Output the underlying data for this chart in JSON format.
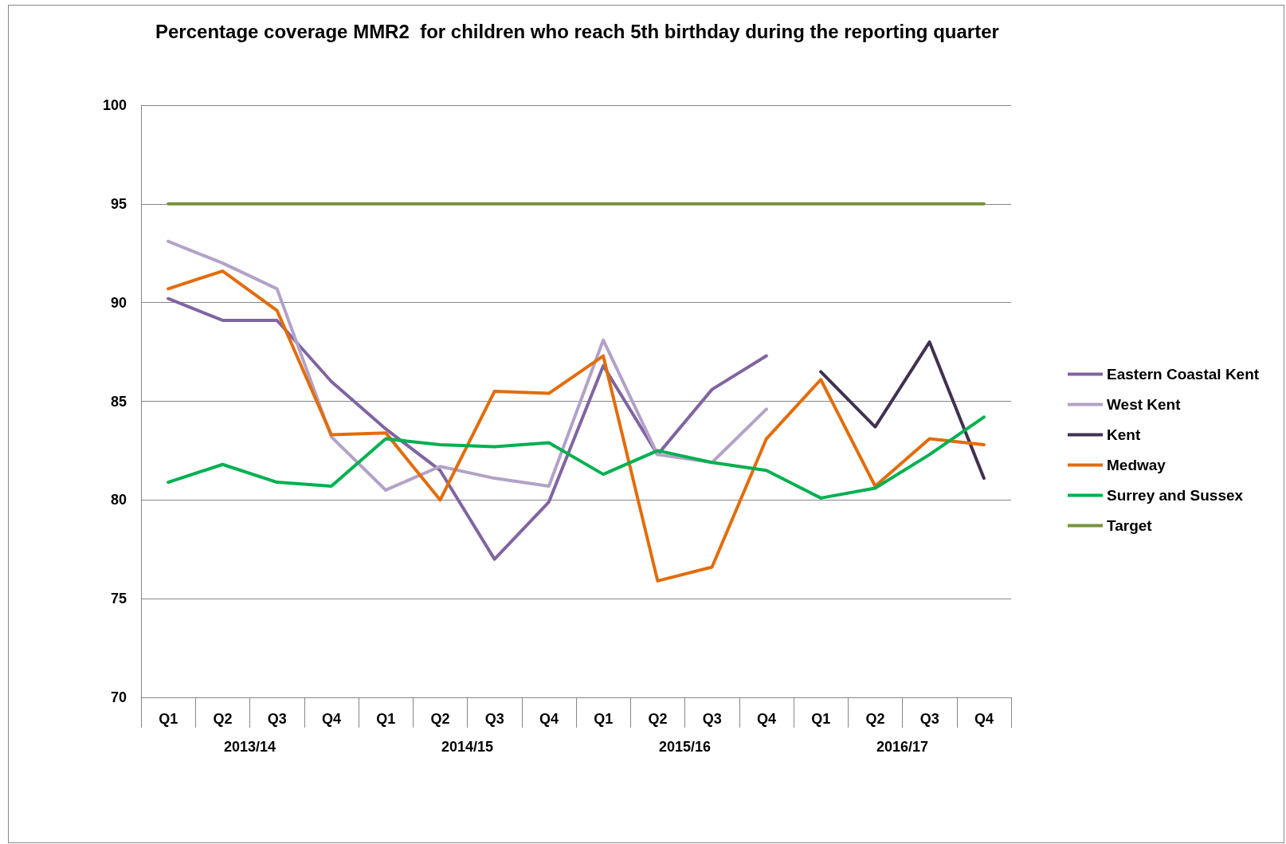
{
  "chart_data": {
    "type": "line",
    "title": "Percentage coverage MMR2  for children who reach 5th birthday during the reporting quarter",
    "categories": [
      "Q1",
      "Q2",
      "Q3",
      "Q4",
      "Q1",
      "Q2",
      "Q3",
      "Q4",
      "Q1",
      "Q2",
      "Q3",
      "Q4",
      "Q1",
      "Q2",
      "Q3",
      "Q4"
    ],
    "annotations": [
      "2013/14",
      "2014/15",
      "2015/16",
      "2016/17"
    ],
    "series": [
      {
        "name": "Eastern Coastal Kent",
        "color": "#8064a2",
        "values": [
          90.2,
          89.1,
          89.1,
          86.0,
          83.6,
          81.5,
          77.0,
          79.9,
          86.8,
          82.3,
          85.6,
          87.3,
          null,
          null,
          null,
          null
        ]
      },
      {
        "name": "West Kent",
        "color": "#b3a2c7",
        "values": [
          93.1,
          92.0,
          90.7,
          83.2,
          80.5,
          81.7,
          81.1,
          80.7,
          88.1,
          82.3,
          81.9,
          84.6,
          null,
          null,
          null,
          null
        ]
      },
      {
        "name": "Kent",
        "color": "#403151",
        "values": [
          null,
          null,
          null,
          null,
          null,
          null,
          null,
          null,
          null,
          null,
          null,
          null,
          86.5,
          83.7,
          88.0,
          81.1
        ]
      },
      {
        "name": "Medway",
        "color": "#e36c09",
        "values": [
          90.7,
          91.6,
          89.6,
          83.3,
          83.4,
          80.0,
          85.5,
          85.4,
          87.3,
          75.9,
          76.6,
          83.1,
          86.1,
          80.7,
          83.1,
          82.8
        ]
      },
      {
        "name": "Surrey and Sussex",
        "color": "#00b050",
        "values": [
          80.9,
          81.8,
          80.9,
          80.7,
          83.1,
          82.8,
          82.7,
          82.9,
          81.3,
          82.5,
          81.9,
          81.5,
          80.1,
          80.6,
          82.3,
          84.2
        ]
      },
      {
        "name": "Target",
        "color": "#77933c",
        "values": [
          95,
          95,
          95,
          95,
          95,
          95,
          95,
          95,
          95,
          95,
          95,
          95,
          95,
          95,
          95,
          95
        ]
      }
    ],
    "ylim": [
      70,
      100
    ],
    "yticks": [
      70,
      75,
      80,
      85,
      90,
      95,
      100
    ],
    "grid": "y",
    "legend": "right",
    "marker": "none",
    "line_style": "solid"
  }
}
